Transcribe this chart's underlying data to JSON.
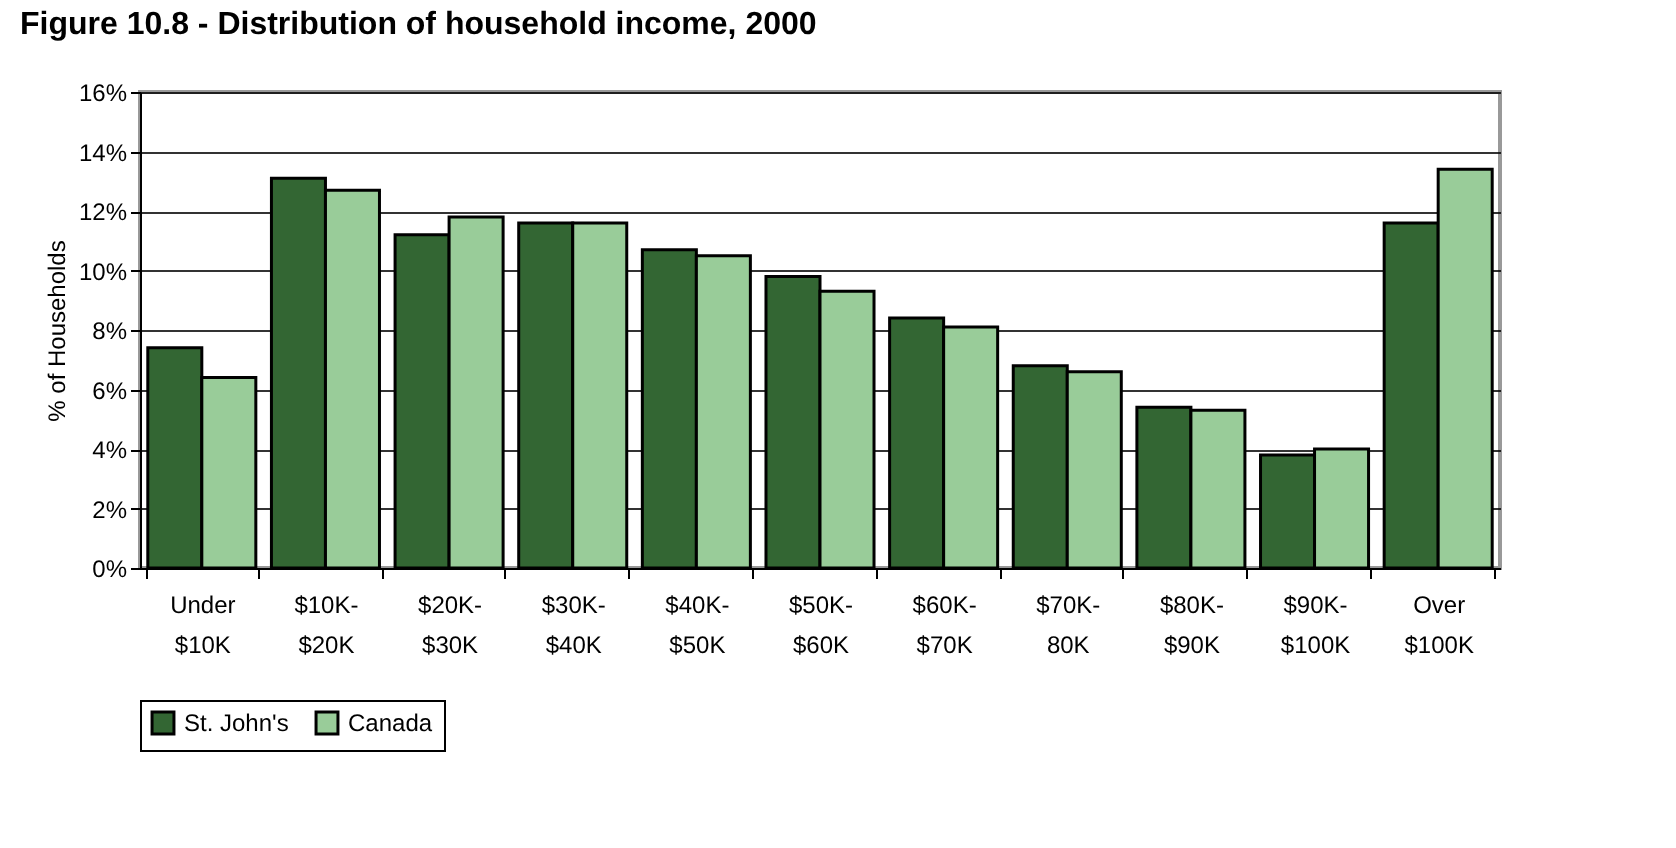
{
  "chart_data": {
    "type": "bar",
    "title": "Figure 10.8 - Distribution of household income, 2000",
    "ylabel": "% of Households",
    "categories": [
      [
        "Under",
        "$10K"
      ],
      [
        "$10K-",
        "$20K"
      ],
      [
        "$20K-",
        "$30K"
      ],
      [
        "$30K-",
        "$40K"
      ],
      [
        "$40K-",
        "$50K"
      ],
      [
        "$50K-",
        "$60K"
      ],
      [
        "$60K-",
        "$70K"
      ],
      [
        "$70K-",
        "80K"
      ],
      [
        "$80K-",
        "$90K"
      ],
      [
        "$90K-",
        "$100K"
      ],
      [
        "Over",
        "$100K"
      ]
    ],
    "series": [
      {
        "name": "St. John's",
        "color": "#336633",
        "values": [
          7.4,
          13.1,
          11.2,
          11.6,
          10.7,
          9.8,
          8.4,
          6.8,
          5.4,
          3.8,
          11.6
        ]
      },
      {
        "name": "Canada",
        "color": "#99cc99",
        "values": [
          6.4,
          12.7,
          11.8,
          11.6,
          10.5,
          9.3,
          8.1,
          6.6,
          5.3,
          4.0,
          13.4
        ]
      }
    ],
    "ylim": [
      0,
      16
    ],
    "yticks": [
      {
        "value": 0,
        "label": "0%"
      },
      {
        "value": 2,
        "label": "2%"
      },
      {
        "value": 4,
        "label": "4%"
      },
      {
        "value": 6,
        "label": "6%"
      },
      {
        "value": 8,
        "label": "8%"
      },
      {
        "value": 10,
        "label": "10%"
      },
      {
        "value": 12,
        "label": "12%"
      },
      {
        "value": 14,
        "label": "14%"
      },
      {
        "value": 16,
        "label": "16%"
      }
    ],
    "grid": "y",
    "legend": "bottom"
  }
}
